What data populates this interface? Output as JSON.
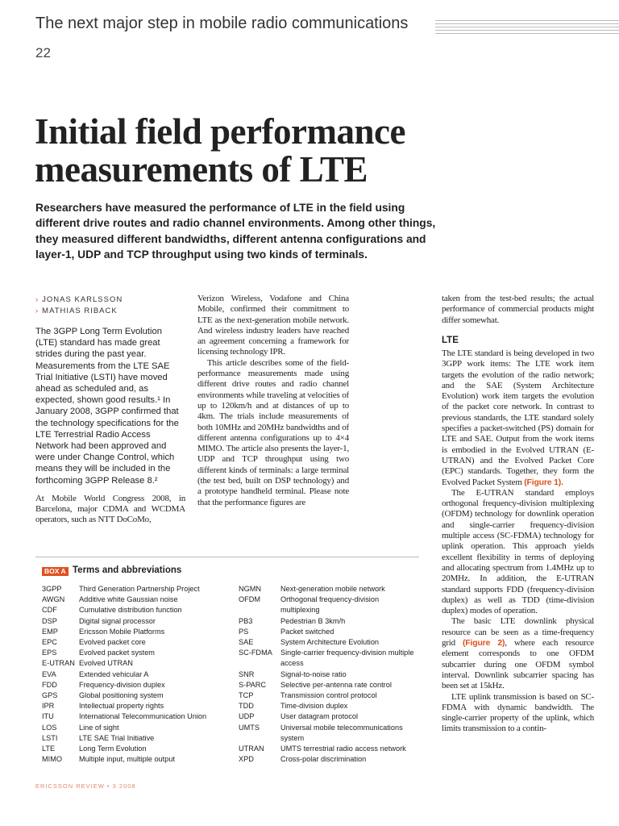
{
  "header": {
    "title": "The next major step in mobile radio communications",
    "page": "22"
  },
  "article": {
    "title_lines": [
      "Initial field performance",
      "measurements of LTE"
    ],
    "lead": "Researchers have measured the performance of LTE in the field using different drive routes and radio channel environments. Among other things, they measured different bandwidths, different antenna configurations and layer-1, UDP and TCP throughput using two kinds of terminals.",
    "authors": [
      "JONAS KARLSSON",
      "MATHIAS RIBACK"
    ],
    "column1": [
      [
        {
          "text": "The 3GPP Long Term Evolution (LTE) standard has made great strides during the past year. Measurements from the LTE SAE Trial Initiative (LSTI) have moved ahead as scheduled and, as expected, shown good results.¹ In January 2008, 3GPP confirmed that the technology specifications for the LTE Terrestrial Radio Access Network had been approved and were under Change Control, which means they will be included in the forthcoming 3GPP Release 8.²"
        }
      ],
      [
        {
          "text": "At Mobile World Congress 2008, in Barcelona, major CDMA and WCDMA operators, such as NTT DoCoMo,"
        }
      ]
    ],
    "column2": [
      [
        {
          "text": "Verizon Wireless, Vodafone and China Mobile, confirmed their commitment to LTE as the next-generation mobile network. And wireless industry leaders have reached an agreement concerning a framework for licensing technology IPR."
        }
      ],
      [
        {
          "text": "This article describes some of the field-performance measurements made using different drive routes and radio channel environments while traveling at velocities of up to 120km/h and at distances of up to 4km. The trials include measurements of both 10MHz and 20MHz bandwidths and of different antenna configurations up to 4×4 MIMO. The article also presents the layer-1, UDP and TCP throughput using two different kinds of terminals: a large terminal (the test bed, built on DSP technology) and a prototype handheld terminal. Please note that the performance figures are"
        }
      ]
    ],
    "column3_intro": [
      [
        {
          "text": "taken from the test-bed results; the actual performance of commercial products might differ somewhat."
        }
      ]
    ],
    "section_heading": "LTE",
    "column3": [
      [
        {
          "text": "The LTE standard is being developed in two 3GPP work items: The LTE work item targets the evolution of the radio network; and the SAE (System Architecture Evolution) work item targets the evolution of the packet core network. In contrast to previous standards, the LTE standard solely specifies a packet-switched (PS) domain for LTE and SAE. Output from the work items is embodied in the Evolved UTRAN (E-UTRAN) and the Evolved Packet Core (EPC) standards. Together, they form the Evolved Packet System "
        },
        {
          "figure_ref": "(Figure 1)."
        }
      ],
      [
        {
          "text": "The E-UTRAN standard employs orthogonal frequency-division multiplexing (OFDM) technology for downlink operation and single-carrier frequency-division multiple access (SC-FDMA) technology for uplink operation. This approach yields excellent flexibility in terms of deploying and allocating spectrum from 1.4MHz up to 20MHz. In addition, the E-UTRAN standard supports FDD (frequency-division duplex) as well as TDD (time-division duplex) modes of operation."
        }
      ],
      [
        {
          "text": "The basic LTE downlink physical resource can be seen as a time-frequency grid "
        },
        {
          "figure_ref": "(Figure 2)"
        },
        {
          "text": ", where each resource element corresponds to one OFDM subcarrier during one OFDM symbol interval. Downlink subcarrier spacing has been set at 15kHz."
        }
      ],
      [
        {
          "text": "LTE uplink transmission is based on SC-FDMA with dynamic bandwidth. The single-carrier property of the uplink, which limits transmission to a contin-"
        }
      ]
    ]
  },
  "box": {
    "label": "BOX A",
    "title": "Terms and abbreviations",
    "left": [
      [
        "3GPP",
        "Third Generation Partnership Project"
      ],
      [
        "AWGN",
        "Additive white Gaussian noise"
      ],
      [
        "CDF",
        "Cumulative distribution function"
      ],
      [
        "DSP",
        "Digital signal processor"
      ],
      [
        "EMP",
        "Ericsson Mobile Platforms"
      ],
      [
        "EPC",
        "Evolved packet core"
      ],
      [
        "EPS",
        "Evolved packet system"
      ],
      [
        "E-UTRAN",
        "Evolved UTRAN"
      ],
      [
        "EVA",
        "Extended vehicular A"
      ],
      [
        "FDD",
        "Frequency-division duplex"
      ],
      [
        "GPS",
        "Global positioning system"
      ],
      [
        "IPR",
        "Intellectual property rights"
      ],
      [
        "ITU",
        "International Telecommunication Union"
      ],
      [
        "LOS",
        "Line of sight"
      ],
      [
        "LSTI",
        "LTE SAE Trial Initiative"
      ],
      [
        "LTE",
        "Long Term Evolution"
      ],
      [
        "MIMO",
        "Multiple input, multiple output"
      ]
    ],
    "right": [
      [
        "NGMN",
        "Next-generation mobile network"
      ],
      [
        "OFDM",
        "Orthogonal frequency-division multiplexing"
      ],
      [
        "PB3",
        "Pedestrian B 3km/h"
      ],
      [
        "PS",
        "Packet switched"
      ],
      [
        "SAE",
        "System Architecture Evolution"
      ],
      [
        "SC-FDMA",
        "Single-carrier frequency-division multiple access"
      ],
      [
        "SNR",
        "Signal-to-noise ratio"
      ],
      [
        "S-PARC",
        "Selective per-antenna rate control"
      ],
      [
        "TCP",
        "Transmission control protocol"
      ],
      [
        "TDD",
        "Time-division duplex"
      ],
      [
        "UDP",
        "User datagram protocol"
      ],
      [
        "UMTS",
        "Universal mobile telecommunications system"
      ],
      [
        "UTRAN",
        "UMTS terrestrial radio access network"
      ],
      [
        "XPD",
        "Cross-polar discrimination"
      ]
    ]
  },
  "footer": "ERICSSON REVIEW • 3 2008"
}
